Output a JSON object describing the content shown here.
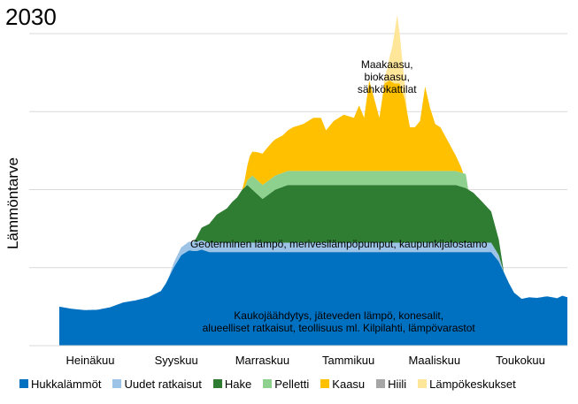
{
  "chart_data": {
    "type": "area",
    "title": "2030",
    "ylabel": "Lämmöntarve",
    "xlabel": "",
    "x_tick_labels": [
      "Heinäkuu",
      "Syyskuu",
      "Marraskuu",
      "Tammikuu",
      "Maaliskuu",
      "Toukokuu"
    ],
    "grid": "horizontal",
    "legend_position": "bottom",
    "y_axis": {
      "range": [
        0,
        100
      ],
      "gridlines": [
        25,
        50,
        75,
        100
      ],
      "tick_labels_shown": false
    },
    "x_domain": [
      0,
      100
    ],
    "series": [
      {
        "name": "Hukkalämmöt",
        "color": "#0070C0",
        "x": [
          0,
          2.5,
          5,
          7.5,
          10,
          12.5,
          15,
          17.5,
          20,
          21,
          22.5,
          24,
          25.5,
          27,
          28,
          29.5,
          31,
          35,
          40,
          45,
          50,
          55,
          60,
          65,
          70,
          75,
          80,
          85,
          86.5,
          88.5,
          89.5,
          91,
          92.5,
          94,
          96,
          98,
          99,
          100
        ],
        "y": [
          12.5,
          11.8,
          11.4,
          11.5,
          12.3,
          13.8,
          14.5,
          15.5,
          17.5,
          20,
          25,
          29,
          30.5,
          30.3,
          30.8,
          30,
          30,
          30,
          30,
          30,
          30,
          30,
          30,
          30,
          30,
          30,
          30,
          30,
          27,
          20,
          17,
          15,
          15.5,
          15.3,
          15.8,
          15.2,
          16,
          15.5
        ]
      },
      {
        "name": "Uudet ratkaisut",
        "color": "#9DC3E6",
        "x": [
          21.5,
          22.5,
          24,
          25.5,
          27,
          28,
          29.5,
          31,
          35,
          40,
          45,
          50,
          55,
          60,
          65,
          70,
          75,
          80,
          85,
          86.5,
          87.5
        ],
        "y": [
          0,
          1.5,
          2.5,
          2.8,
          3,
          3,
          3,
          3,
          3,
          3,
          3,
          3,
          3,
          3,
          3,
          3,
          3,
          3,
          3,
          2,
          0
        ]
      },
      {
        "name": "Hake",
        "color": "#2E7D32",
        "x": [
          26.5,
          28,
          29.5,
          31,
          33,
          34,
          35,
          36,
          37,
          38,
          40,
          42.5,
          45,
          50,
          55,
          60,
          65,
          70,
          75,
          78,
          80,
          81.5,
          83,
          85,
          86.5,
          87.5
        ],
        "y": [
          0,
          4,
          6,
          9,
          11,
          13,
          14.5,
          17,
          18.5,
          17,
          14,
          17,
          18.5,
          18.5,
          18.5,
          18.5,
          18.5,
          18.5,
          18.5,
          18.5,
          17.5,
          16,
          13.5,
          10,
          5,
          0
        ]
      },
      {
        "name": "Pelletti",
        "color": "#8ED08E",
        "x": [
          36.5,
          38,
          40,
          42,
          45,
          50,
          55,
          60,
          65,
          70,
          75,
          78,
          80,
          80.5
        ],
        "y": [
          0,
          4.5,
          4.5,
          4.5,
          4.5,
          4.5,
          4.5,
          4.5,
          4.5,
          4.5,
          4.5,
          4.5,
          4.5,
          0
        ]
      },
      {
        "name": "Kaasu",
        "color": "#FFC000",
        "x": [
          36,
          37.5,
          39,
          40.5,
          42,
          44,
          46,
          48,
          50,
          51.5,
          52.5,
          54,
          56,
          58,
          59,
          60,
          61,
          62,
          63,
          64,
          65,
          66,
          67,
          68,
          69,
          70,
          71,
          72,
          73,
          74,
          75,
          76,
          77,
          78,
          79,
          79.5
        ],
        "y": [
          0,
          7,
          9,
          10.5,
          11.5,
          12,
          14,
          15,
          17,
          17,
          13,
          16,
          18,
          17,
          21,
          17,
          29,
          23,
          17,
          28,
          29,
          28,
          28,
          23,
          14,
          14,
          16,
          27,
          20,
          15,
          14,
          11,
          8,
          5,
          2,
          0
        ]
      },
      {
        "name": "Hiili",
        "color": "#A6A6A6",
        "x": [],
        "y": []
      },
      {
        "name": "Lämpökeskukset",
        "color": "#FFE699",
        "x": [
          63.5,
          64.5,
          65.5,
          66.5,
          67.5,
          68.5
        ],
        "y": [
          0,
          4,
          11,
          22,
          10,
          0
        ]
      }
    ],
    "annotations": [
      {
        "id": "ann_peak",
        "lines": [
          "Maakaasu,",
          "biokaasu,",
          "sähkökattilat"
        ],
        "x": 64.5,
        "y": 89
      },
      {
        "id": "ann_geo",
        "lines": [
          "Geoterminen lämpö, merivesilämpöpumput, kaupunkijalostamo"
        ],
        "x": 55,
        "y": 31.5
      },
      {
        "id": "ann_waste",
        "lines": [
          "Kaukojäähdytys, jäteveden lämpö, konesalit,",
          "alueelliset ratkaisut, teollisuus ml. Kilpilahti, lämpövarastot"
        ],
        "x": 55,
        "y": 8.5
      }
    ]
  }
}
